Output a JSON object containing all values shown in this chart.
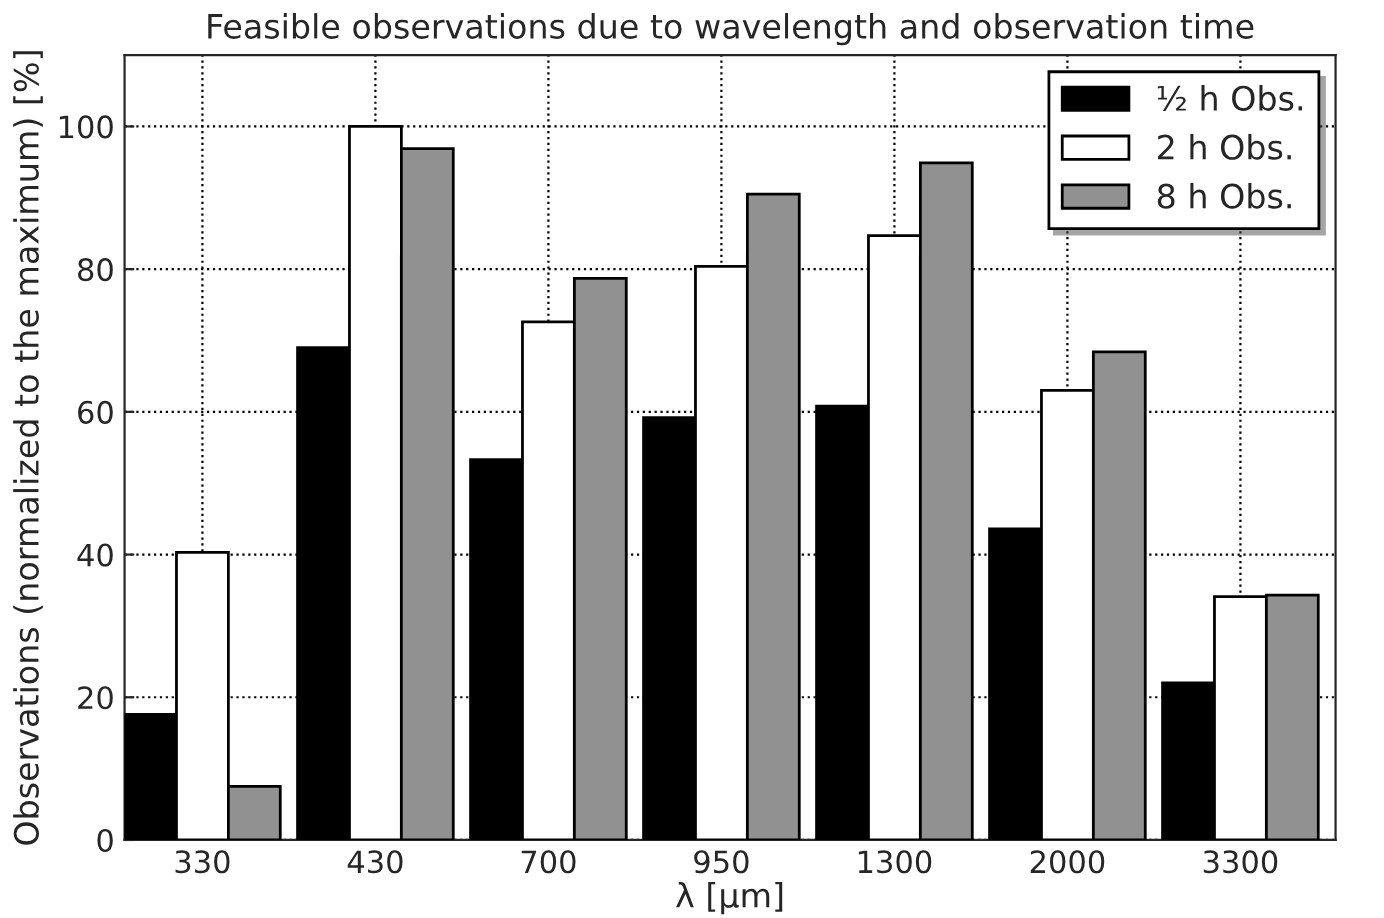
{
  "chart_data": {
    "type": "bar",
    "title": "Feasible observations due to wavelength and observation time",
    "xlabel": "λ [μm]",
    "ylabel": "Observations (normalized to the maximum) [%]",
    "categories": [
      "330",
      "430",
      "700",
      "950",
      "1300",
      "2000",
      "3300"
    ],
    "series": [
      {
        "name": "½ h Obs.",
        "color": "#000000",
        "values": [
          17.6,
          69.0,
          53.3,
          59.2,
          60.8,
          43.6,
          22.0
        ]
      },
      {
        "name": "2 h Obs.",
        "color": "#ffffff",
        "values": [
          40.3,
          100,
          72.6,
          80.4,
          84.7,
          63.0,
          34.1
        ]
      },
      {
        "name": "8 h Obs.",
        "color": "#919191",
        "values": [
          7.5,
          96.9,
          78.7,
          90.5,
          94.9,
          68.4,
          34.3
        ]
      }
    ],
    "ylim": [
      0,
      110
    ],
    "yticks": [
      0,
      20,
      40,
      60,
      80,
      100
    ],
    "grid": true,
    "legend": "top right"
  }
}
